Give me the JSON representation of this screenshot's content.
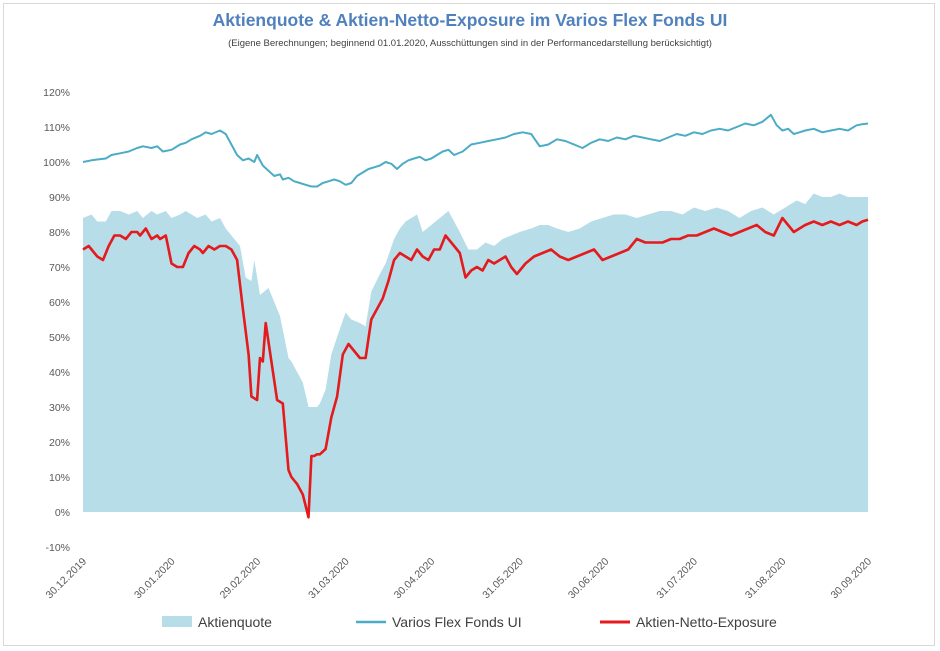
{
  "chart_data": {
    "type": "line",
    "title": "Aktienquote & Aktien-Netto-Exposure im Varios Flex Fonds UI",
    "subtitle": "(Eigene Berechnungen; beginnend 01.01.2020, Ausschüttungen sind in der Performancedarstellung berücksichtigt)",
    "xlabel": "",
    "ylabel": "",
    "ylim": [
      -10,
      120
    ],
    "yticks": [
      "120%",
      "110%",
      "100%",
      "90%",
      "80%",
      "70%",
      "60%",
      "50%",
      "40%",
      "30%",
      "20%",
      "10%",
      "0%",
      "-10%"
    ],
    "yticks_values": [
      120,
      110,
      100,
      90,
      80,
      70,
      60,
      50,
      40,
      30,
      20,
      10,
      0,
      -10
    ],
    "xticks": [
      "30.12.2019",
      "30.01.2020",
      "29.02.2020",
      "31.03.2020",
      "30.04.2020",
      "31.05.2020",
      "30.06.2020",
      "31.07.2020",
      "31.08.2020",
      "30.09.2020"
    ],
    "x_range_days": [
      0,
      275
    ],
    "xticks_days": [
      0,
      31,
      61,
      92,
      122,
      153,
      183,
      214,
      245,
      275
    ],
    "grid": false,
    "legend": "bottom",
    "series": [
      {
        "name": "Aktienquote",
        "kind": "area",
        "color": "#b7dde8",
        "x": [
          0,
          3,
          5,
          8,
          10,
          13,
          16,
          19,
          21,
          24,
          26,
          29,
          31,
          34,
          36,
          38,
          40,
          43,
          45,
          48,
          50,
          52,
          55,
          57,
          59,
          60,
          62,
          65,
          67,
          69,
          72,
          73,
          75,
          77,
          79,
          82,
          83,
          85,
          87,
          89,
          92,
          94,
          97,
          99,
          101,
          104,
          106,
          109,
          111,
          113,
          115,
          117,
          119,
          122,
          125,
          128,
          130,
          132,
          135,
          138,
          141,
          144,
          147,
          150,
          153,
          157,
          160,
          163,
          166,
          170,
          174,
          178,
          182,
          186,
          190,
          194,
          198,
          202,
          206,
          210,
          214,
          218,
          222,
          226,
          230,
          234,
          238,
          242,
          246,
          250,
          253,
          256,
          259,
          262,
          265,
          268,
          271,
          275
        ],
        "values": [
          84,
          85,
          83,
          83,
          86,
          86,
          85,
          86,
          84,
          86,
          85,
          86,
          84,
          85,
          86,
          85,
          84,
          85,
          83,
          84,
          81,
          79,
          76,
          67,
          66,
          72,
          62,
          64,
          60,
          56,
          44,
          43,
          40,
          37,
          30,
          30,
          31,
          35,
          45,
          50,
          57,
          55,
          54,
          53,
          63,
          68,
          71,
          78,
          81,
          83,
          84,
          85,
          80,
          82,
          84,
          86,
          83,
          80,
          75,
          75,
          77,
          76,
          78,
          79,
          80,
          81,
          82,
          82,
          81,
          80,
          81,
          83,
          84,
          85,
          85,
          84,
          85,
          86,
          86,
          85,
          87,
          86,
          87,
          86,
          84,
          86,
          87,
          85,
          87,
          89,
          88,
          91,
          90,
          90,
          91,
          90,
          90,
          90
        ]
      },
      {
        "name": "Varios Flex Fonds UI",
        "kind": "line",
        "color": "#4bacc6",
        "x": [
          0,
          3,
          5,
          8,
          10,
          13,
          16,
          19,
          21,
          24,
          26,
          28,
          31,
          34,
          36,
          38,
          41,
          43,
          45,
          48,
          50,
          52,
          54,
          56,
          58,
          60,
          61,
          63,
          65,
          67,
          69,
          70,
          72,
          74,
          76,
          78,
          80,
          82,
          84,
          86,
          88,
          90,
          92,
          94,
          96,
          98,
          100,
          102,
          104,
          106,
          108,
          110,
          112,
          114,
          116,
          118,
          120,
          122,
          124,
          126,
          128,
          130,
          133,
          136,
          139,
          142,
          145,
          148,
          151,
          154,
          157,
          160,
          163,
          166,
          169,
          172,
          175,
          178,
          181,
          184,
          187,
          190,
          193,
          196,
          199,
          202,
          205,
          208,
          211,
          214,
          217,
          220,
          223,
          226,
          229,
          232,
          235,
          238,
          241,
          243,
          245,
          247,
          249,
          251,
          253,
          256,
          259,
          262,
          265,
          268,
          271,
          273,
          275
        ],
        "values": [
          100,
          100.5,
          100.7,
          101,
          102,
          102.5,
          103,
          104,
          104.5,
          104,
          104.5,
          103,
          103.5,
          105,
          105.5,
          106.5,
          107.5,
          108.5,
          108,
          109,
          108,
          105,
          102,
          100.5,
          101,
          100,
          102,
          99,
          97.5,
          96,
          96.5,
          95,
          95.5,
          94.5,
          94,
          93.5,
          93,
          93,
          94,
          94.5,
          95,
          94.5,
          93.5,
          94,
          96,
          97,
          98,
          98.5,
          99,
          100,
          99.5,
          98,
          99.5,
          100.5,
          101,
          101.5,
          100.5,
          101,
          102,
          103,
          103.5,
          102,
          103,
          105,
          105.5,
          106,
          106.5,
          107,
          108,
          108.5,
          108,
          104.5,
          105,
          106.5,
          106,
          105,
          104,
          105.5,
          106.5,
          106,
          107,
          106.5,
          107.5,
          107,
          106.5,
          106,
          107,
          108,
          107.5,
          108.5,
          108,
          109,
          109.5,
          109,
          110,
          111,
          110.5,
          111.5,
          113.5,
          110.5,
          109,
          109.5,
          108,
          108.5,
          109,
          109.5,
          108.5,
          109,
          109.5,
          109,
          110.5,
          110.8,
          111
        ]
      },
      {
        "name": "Aktien-Netto-Exposure",
        "kind": "line",
        "color": "#e41a1c",
        "x": [
          0,
          2,
          4,
          5,
          7,
          9,
          11,
          13,
          15,
          17,
          19,
          20,
          22,
          24,
          26,
          27,
          29,
          31,
          33,
          35,
          37,
          39,
          41,
          42,
          44,
          46,
          48,
          50,
          52,
          54,
          56,
          58,
          59,
          61,
          62,
          63,
          64,
          66,
          68,
          70,
          72,
          73,
          74,
          75,
          77,
          79,
          80,
          81,
          82,
          83,
          85,
          87,
          89,
          91,
          93,
          95,
          97,
          99,
          101,
          103,
          105,
          107,
          109,
          111,
          113,
          115,
          117,
          119,
          121,
          123,
          125,
          127,
          130,
          132,
          134,
          136,
          138,
          140,
          142,
          144,
          146,
          148,
          150,
          152,
          155,
          158,
          161,
          164,
          167,
          170,
          173,
          176,
          179,
          182,
          185,
          188,
          191,
          194,
          197,
          200,
          203,
          206,
          209,
          212,
          215,
          218,
          221,
          224,
          227,
          230,
          233,
          236,
          239,
          242,
          245,
          247,
          249,
          251,
          253,
          256,
          259,
          262,
          265,
          268,
          271,
          273,
          275
        ],
        "values": [
          75,
          76,
          74,
          73,
          72,
          76,
          79,
          79,
          78,
          80,
          80,
          79,
          81,
          78,
          79,
          78,
          79,
          71,
          70,
          70,
          74,
          76,
          75,
          74,
          76,
          75,
          76,
          76,
          75,
          72,
          58,
          45,
          33,
          32,
          44,
          43,
          54,
          43,
          32,
          31,
          12,
          10,
          9,
          8,
          5,
          -1.5,
          16,
          16,
          16.5,
          16.5,
          18,
          27,
          33,
          45,
          48,
          46,
          44,
          44,
          55,
          58,
          61,
          66,
          72,
          74,
          73,
          72,
          75,
          73,
          72,
          75,
          75,
          79,
          76,
          74,
          67,
          69,
          70,
          69,
          72,
          71,
          72,
          73,
          70,
          68,
          71,
          73,
          74,
          75,
          73,
          72,
          73,
          74,
          75,
          72,
          73,
          74,
          75,
          78,
          77,
          77,
          77,
          78,
          78,
          79,
          79,
          80,
          81,
          80,
          79,
          80,
          81,
          82,
          80,
          79,
          84,
          82,
          80,
          81,
          82,
          83,
          82,
          83,
          82,
          83,
          82,
          83,
          83.5
        ]
      }
    ]
  }
}
